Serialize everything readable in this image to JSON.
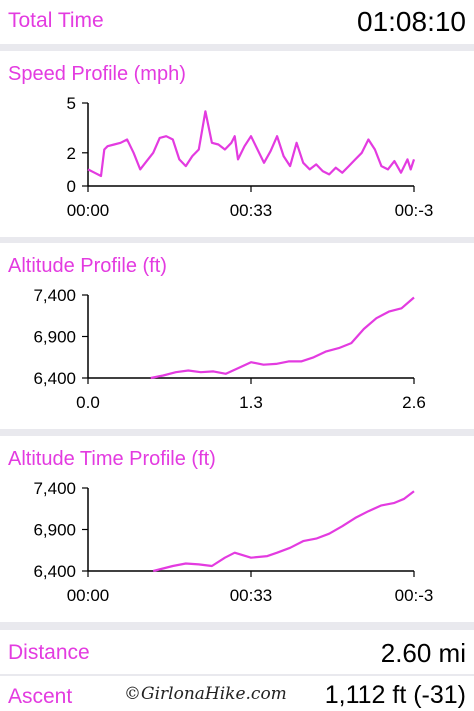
{
  "total_time": {
    "label": "Total Time",
    "value": "01:08:10"
  },
  "distance": {
    "label": "Distance",
    "value": "2.60 mi"
  },
  "ascent": {
    "label": "Ascent",
    "value": "1,112 ft (-31)"
  },
  "watermark": "©GirlonaHike.com",
  "colors": {
    "accent": "#e33be0",
    "background": "#e9e9ee",
    "card": "#ffffff"
  },
  "chart_data": [
    {
      "type": "line",
      "title": "Speed Profile (mph)",
      "ylim": [
        0,
        5
      ],
      "y_ticks": [
        "5",
        "2",
        "0"
      ],
      "y_tick_values": [
        5,
        2,
        0
      ],
      "x_ticks": [
        "00:00",
        "00:33",
        "00:-3"
      ],
      "x_tick_values": [
        0,
        0.5,
        1
      ],
      "grid": false,
      "series": [
        {
          "x": [
            0,
            0.02,
            0.04,
            0.05,
            0.06,
            0.08,
            0.1,
            0.12,
            0.14,
            0.16,
            0.18,
            0.2,
            0.22,
            0.24,
            0.26,
            0.28,
            0.3,
            0.32,
            0.34,
            0.36,
            0.38,
            0.4,
            0.42,
            0.44,
            0.45,
            0.46,
            0.48,
            0.5,
            0.52,
            0.54,
            0.56,
            0.58,
            0.6,
            0.62,
            0.64,
            0.66,
            0.68,
            0.7,
            0.72,
            0.74,
            0.76,
            0.78,
            0.8,
            0.82,
            0.84,
            0.86,
            0.88,
            0.9,
            0.92,
            0.94,
            0.96,
            0.98,
            0.99,
            1.0
          ],
          "y": [
            1.0,
            0.8,
            0.6,
            2.2,
            2.4,
            2.5,
            2.6,
            2.8,
            2.0,
            1.0,
            1.5,
            2.0,
            2.9,
            3.0,
            2.8,
            1.6,
            1.2,
            1.8,
            2.2,
            4.5,
            2.6,
            2.5,
            2.2,
            2.6,
            3.0,
            1.6,
            2.4,
            3.0,
            2.2,
            1.4,
            2.1,
            3.0,
            1.8,
            1.2,
            2.6,
            1.4,
            1.0,
            1.3,
            0.9,
            0.7,
            1.1,
            0.8,
            1.2,
            1.6,
            2.0,
            2.8,
            2.2,
            1.2,
            1.0,
            1.5,
            0.8,
            1.6,
            1.0,
            1.6
          ]
        }
      ]
    },
    {
      "type": "line",
      "title": "Altitude Profile (ft)",
      "ylim": [
        6400,
        7400
      ],
      "y_ticks": [
        "7,400",
        "6,900",
        "6,400"
      ],
      "y_tick_values": [
        7400,
        6900,
        6400
      ],
      "x_ticks": [
        "0.0",
        "1.3",
        "2.6"
      ],
      "x_tick_values": [
        0,
        1.3,
        2.6
      ],
      "grid": false,
      "series": [
        {
          "x": [
            0.5,
            0.6,
            0.7,
            0.8,
            0.9,
            1.0,
            1.1,
            1.2,
            1.3,
            1.4,
            1.5,
            1.6,
            1.7,
            1.8,
            1.9,
            2.0,
            2.1,
            2.2,
            2.3,
            2.4,
            2.5,
            2.6
          ],
          "y": [
            6400,
            6430,
            6470,
            6490,
            6470,
            6480,
            6450,
            6520,
            6590,
            6560,
            6570,
            6600,
            6600,
            6650,
            6720,
            6760,
            6820,
            6990,
            7120,
            7200,
            7240,
            7370
          ]
        }
      ]
    },
    {
      "type": "line",
      "title": "Altitude Time Profile (ft)",
      "ylim": [
        6400,
        7400
      ],
      "y_ticks": [
        "7,400",
        "6,900",
        "6,400"
      ],
      "y_tick_values": [
        7400,
        6900,
        6400
      ],
      "x_ticks": [
        "00:00",
        "00:33",
        "00:-3"
      ],
      "x_tick_values": [
        0,
        0.5,
        1
      ],
      "grid": false,
      "series": [
        {
          "x": [
            0.2,
            0.26,
            0.3,
            0.34,
            0.38,
            0.42,
            0.45,
            0.5,
            0.55,
            0.58,
            0.62,
            0.66,
            0.7,
            0.74,
            0.78,
            0.82,
            0.86,
            0.9,
            0.94,
            0.97,
            1.0
          ],
          "y": [
            6400,
            6460,
            6490,
            6480,
            6460,
            6560,
            6620,
            6560,
            6580,
            6620,
            6680,
            6760,
            6790,
            6850,
            6940,
            7040,
            7120,
            7190,
            7220,
            7270,
            7360
          ]
        }
      ]
    }
  ]
}
